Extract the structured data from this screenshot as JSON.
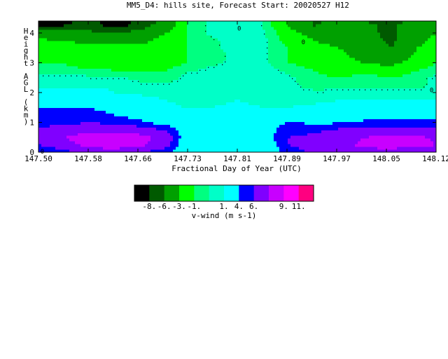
{
  "chart_data": {
    "type": "heatmap",
    "title": "MM5_D4: hills site,  Forecast Start: 20020527 H12",
    "xlabel": "Fractional Day of Year (UTC)",
    "ylabel_chars": [
      "H",
      "e",
      "i",
      "g",
      "h",
      "t",
      "",
      "A",
      "G",
      "L",
      "",
      "(",
      "k",
      "m",
      ")"
    ],
    "x_ticks": [
      "147.50",
      "147.58",
      "147.66",
      "147.73",
      "147.81",
      "147.89",
      "147.97",
      "148.05",
      "148.12"
    ],
    "y_ticks": [
      "0",
      "1",
      "2",
      "3",
      "4"
    ],
    "xlim": [
      147.5,
      148.12
    ],
    "ylim": [
      0,
      4.4
    ],
    "contour_labels": [
      "0",
      "0",
      "0",
      "0"
    ],
    "colorbar": {
      "title": "v-wind (m s-1)",
      "tick_labels": [
        "-8.",
        "-6.",
        "-3.",
        "-1.",
        "1.",
        "4.",
        "6.",
        "9.",
        "11."
      ],
      "colors": [
        "#000000",
        "#005a00",
        "#00a000",
        "#00ff00",
        "#00ff80",
        "#00ffc8",
        "#00ffff",
        "#0000ff",
        "#8000ff",
        "#c800ff",
        "#ff00ff",
        "#ff0080"
      ]
    },
    "x": [
      147.5,
      147.54,
      147.58,
      147.62,
      147.66,
      147.7,
      147.73,
      147.77,
      147.81,
      147.85,
      147.89,
      147.93,
      147.97,
      148.01,
      148.05,
      148.09,
      148.12
    ],
    "y": [
      0,
      0.25,
      0.5,
      0.75,
      1.0,
      1.25,
      1.5,
      1.75,
      2.0,
      2.25,
      2.5,
      2.75,
      3.0,
      3.25,
      3.5,
      3.75,
      4.0,
      4.25,
      4.4
    ],
    "values": [
      [
        3.5,
        5.0,
        7.0,
        7.0,
        6.0,
        4.5,
        1.5,
        1.0,
        1.0,
        1.5,
        5.0,
        6.5,
        7.5,
        8.0,
        7.5,
        6.5,
        6.0
      ],
      [
        6.0,
        8.0,
        10.0,
        11.0,
        9.5,
        7.0,
        2.0,
        1.0,
        1.0,
        2.0,
        6.0,
        7.0,
        8.5,
        9.5,
        10.5,
        10.0,
        9.0
      ],
      [
        7.5,
        9.0,
        10.5,
        11.0,
        10.0,
        7.5,
        2.5,
        1.0,
        1.0,
        2.5,
        6.0,
        6.5,
        8.0,
        9.0,
        10.0,
        9.5,
        8.5
      ],
      [
        6.5,
        7.5,
        8.5,
        8.5,
        7.5,
        6.0,
        2.5,
        1.0,
        1.0,
        2.5,
        5.5,
        5.5,
        6.5,
        7.0,
        7.0,
        7.0,
        7.0
      ],
      [
        5.0,
        5.5,
        6.0,
        5.5,
        4.5,
        3.0,
        2.0,
        1.0,
        1.0,
        1.5,
        4.5,
        3.5,
        4.0,
        4.5,
        4.5,
        4.5,
        4.5
      ],
      [
        4.5,
        4.5,
        4.5,
        4.0,
        3.0,
        2.0,
        1.5,
        1.0,
        1.0,
        1.0,
        2.0,
        2.5,
        2.5,
        3.0,
        3.0,
        3.0,
        3.0
      ],
      [
        4.0,
        4.0,
        4.0,
        3.5,
        2.5,
        1.5,
        1.0,
        1.0,
        1.5,
        1.0,
        1.0,
        1.5,
        2.0,
        2.0,
        2.0,
        2.0,
        2.0
      ],
      [
        2.0,
        2.5,
        2.5,
        2.0,
        1.5,
        1.0,
        0.5,
        0.5,
        1.0,
        0.5,
        0.5,
        0.5,
        1.0,
        1.0,
        1.0,
        1.0,
        1.0
      ],
      [
        1.5,
        1.5,
        1.5,
        1.0,
        0.8,
        0.5,
        0.5,
        0.5,
        0.5,
        0.5,
        0.5,
        0.3,
        0.5,
        0.5,
        0.5,
        0.3,
        0.3
      ],
      [
        0.8,
        0.8,
        0.8,
        0.8,
        0.5,
        0.3,
        0.5,
        0.5,
        0.5,
        0.5,
        0.3,
        -0.5,
        -0.5,
        -0.3,
        -0.5,
        -0.3,
        0.3
      ],
      [
        0.5,
        0.5,
        0.3,
        0.3,
        -0.5,
        -0.8,
        0.5,
        0.5,
        0.5,
        0.5,
        0.3,
        -0.8,
        -1.0,
        -0.5,
        -1.0,
        -0.5,
        0.3
      ],
      [
        -0.5,
        -0.8,
        -0.8,
        -1.0,
        -1.0,
        -1.0,
        -0.3,
        0.5,
        0.5,
        0.5,
        -0.3,
        -1.0,
        -1.5,
        -1.5,
        -2.0,
        -1.0,
        -0.5
      ],
      [
        -1.0,
        -1.0,
        -1.5,
        -1.5,
        -1.5,
        -1.5,
        -1.0,
        -0.3,
        0.5,
        0.3,
        -1.0,
        -1.5,
        -2.0,
        -3.0,
        -3.5,
        -2.0,
        -1.0
      ],
      [
        -1.5,
        -1.5,
        -2.0,
        -2.0,
        -2.0,
        -1.5,
        -1.0,
        -0.5,
        0.3,
        0.3,
        -1.0,
        -2.0,
        -2.5,
        -4.0,
        -5.5,
        -2.5,
        -1.5
      ],
      [
        -1.5,
        -2.0,
        -2.5,
        -2.5,
        -2.5,
        -1.5,
        -1.0,
        -0.3,
        0.5,
        0.3,
        -1.0,
        -2.5,
        -3.0,
        -4.5,
        -6.0,
        -3.0,
        -2.0
      ],
      [
        -2.5,
        -3.0,
        -3.5,
        -3.5,
        -3.5,
        -2.0,
        -1.0,
        -0.3,
        0.5,
        0.3,
        -1.5,
        -3.0,
        -3.5,
        -5.0,
        -6.5,
        -3.5,
        -2.5
      ],
      [
        -4.5,
        -5.0,
        -5.5,
        -5.5,
        -5.0,
        -3.0,
        -1.0,
        0.3,
        0.5,
        0.3,
        -2.0,
        -4.0,
        -4.0,
        -5.5,
        -6.5,
        -4.0,
        -3.0
      ],
      [
        -8.5,
        -8.0,
        -7.0,
        -9.0,
        -7.0,
        -4.5,
        -1.0,
        0.3,
        0.5,
        0.0,
        -3.0,
        -6.0,
        -4.5,
        -5.5,
        -6.5,
        -4.5,
        -3.0
      ],
      [
        -9.0,
        -8.5,
        -7.5,
        -9.0,
        -7.5,
        -5.0,
        -1.0,
        0.3,
        0.5,
        0.0,
        -3.0,
        -6.5,
        -5.0,
        -6.0,
        -7.0,
        -5.0,
        -3.5
      ]
    ],
    "levels": [
      -8,
      -6,
      -3,
      -1,
      0,
      1,
      4,
      6,
      9,
      11
    ],
    "grid": false
  }
}
